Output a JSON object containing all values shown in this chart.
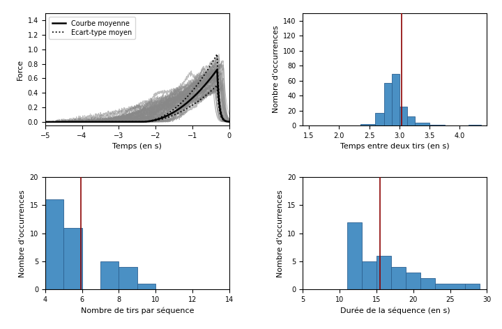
{
  "subplot_top_left": {
    "xlabel": "Temps (en s)",
    "ylabel": "Force",
    "xlim": [
      -5,
      0
    ],
    "ylim": [
      -0.05,
      1.5
    ],
    "xticks": [
      -5,
      -4,
      -3,
      -2,
      -1,
      0
    ],
    "yticks": [
      0.0,
      0.2,
      0.4,
      0.6,
      0.8,
      1.0,
      1.2,
      1.4
    ],
    "legend_mean": "Courbe moyenne",
    "legend_std": "Ecart-type moyen",
    "n_curves": 40,
    "gray_color": "#888888",
    "gray_alpha": 0.55,
    "gray_lw": 0.7,
    "mean_color": "black",
    "mean_lw": 1.8,
    "std_lw": 1.3
  },
  "subplot_top_right": {
    "xlabel": "Temps entre deux tirs (en s)",
    "ylabel": "Nombre d'occurrences",
    "bin_edges": [
      2.35,
      2.6,
      2.75,
      2.875,
      3.0,
      3.125,
      3.25,
      3.5,
      3.75,
      4.15,
      4.35
    ],
    "bin_counts": [
      2,
      17,
      57,
      69,
      25,
      12,
      4,
      1,
      0,
      1
    ],
    "ylim": [
      0,
      150
    ],
    "xlim": [
      1.4,
      4.45
    ],
    "yticks": [
      0,
      20,
      40,
      60,
      80,
      100,
      120,
      140
    ],
    "red_line_x": 3.04,
    "bar_color": "#4a90c4",
    "bar_edgecolor": "#2c6090"
  },
  "subplot_bottom_left": {
    "xlabel": "Nombre de tirs par séquence",
    "ylabel": "Nombre d'occurrences",
    "bin_edges": [
      4,
      5,
      6,
      7,
      8,
      9,
      10,
      14
    ],
    "bin_counts": [
      16,
      11,
      0,
      5,
      4,
      1,
      0
    ],
    "ylim": [
      0,
      20
    ],
    "xlim": [
      4,
      14
    ],
    "xticks": [
      4,
      6,
      8,
      10,
      12,
      14
    ],
    "yticks": [
      0,
      5,
      10,
      15,
      20
    ],
    "red_line_x": 5.93,
    "bar_color": "#4a90c4",
    "bar_edgecolor": "#2c6090"
  },
  "subplot_bottom_right": {
    "xlabel": "Durée de la séquence (en s)",
    "ylabel": "Nombre d'occurrences",
    "bin_edges": [
      5,
      11,
      13,
      15,
      17,
      19,
      21,
      23,
      27,
      29
    ],
    "bin_counts": [
      0,
      12,
      5,
      6,
      4,
      3,
      2,
      1,
      1
    ],
    "ylim": [
      0,
      20
    ],
    "xlim": [
      5,
      30
    ],
    "xticks": [
      5,
      10,
      15,
      20,
      25,
      30
    ],
    "yticks": [
      0,
      5,
      10,
      15,
      20
    ],
    "red_line_x": 15.5,
    "bar_color": "#4a90c4",
    "bar_edgecolor": "#2c6090"
  }
}
